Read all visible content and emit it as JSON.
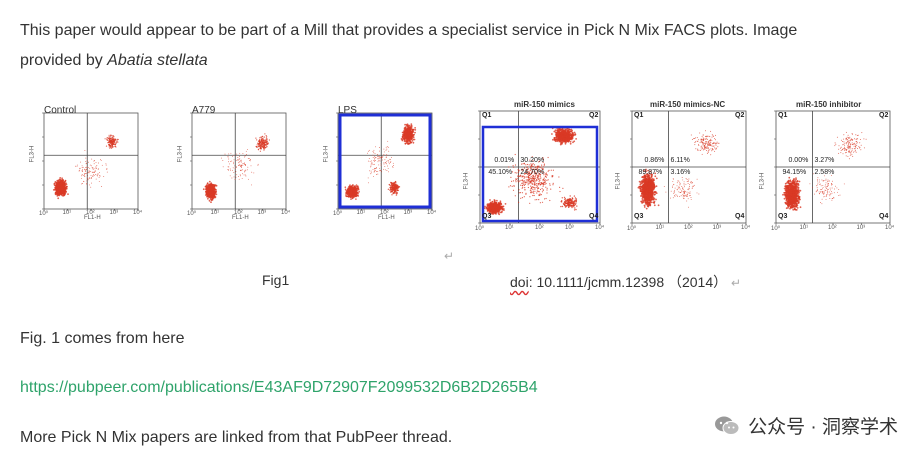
{
  "intro": {
    "line1": "This paper would appear to be part of a Mill that provides a specialist service in Pick N Mix FACS plots. Image",
    "line2_prefix": "provided by ",
    "line2_italic": "Abatia stellata"
  },
  "figure": {
    "left_panels": [
      {
        "title": "Control"
      },
      {
        "title": "A779"
      },
      {
        "title": "LPS"
      }
    ],
    "right_panels": [
      {
        "title": "miR-150 mimics",
        "q1": "Q1",
        "q2": "Q2",
        "q3": "Q3",
        "q4": "Q4",
        "p_ul": "0.01%",
        "p_ur": "30.20%",
        "p_ll": "45.10%",
        "p_lr": "24.70%"
      },
      {
        "title": "miR-150 mimics-NC",
        "q1": "Q1",
        "q2": "Q2",
        "q3": "Q3",
        "q4": "Q4",
        "p_ul": "0.86%",
        "p_ur": "6.11%",
        "p_ll": "89.87%",
        "p_lr": "3.16%"
      },
      {
        "title": "miR-150 inhibitor",
        "q1": "Q1",
        "q2": "Q2",
        "q3": "Q3",
        "q4": "Q4",
        "p_ul": "0.00%",
        "p_ur": "3.27%",
        "p_ll": "94.15%",
        "p_lr": "2.58%"
      }
    ],
    "axis_y": "FL3-H",
    "axis_x": "FL1-H",
    "caption_left": "Fig1",
    "caption_doi_prefix": "doi",
    "caption_doi_rest": ": 10.1111/jcmm.12398  （2014）",
    "return_symbol": "↵"
  },
  "text": {
    "fig_source": "Fig. 1 comes from here",
    "link": "https://pubpeer.com/publications/E43AF9D72907F2099532D6B2D265B4",
    "more": "More Pick N Mix papers are linked from that PubPeer thread."
  },
  "watermark": {
    "text": "公众号 · 洞察学术",
    "icon": "wechat-icon"
  },
  "colors": {
    "dots": "#d93a26",
    "highlight_box": "#1f2fd6",
    "link": "#2ea36a"
  }
}
